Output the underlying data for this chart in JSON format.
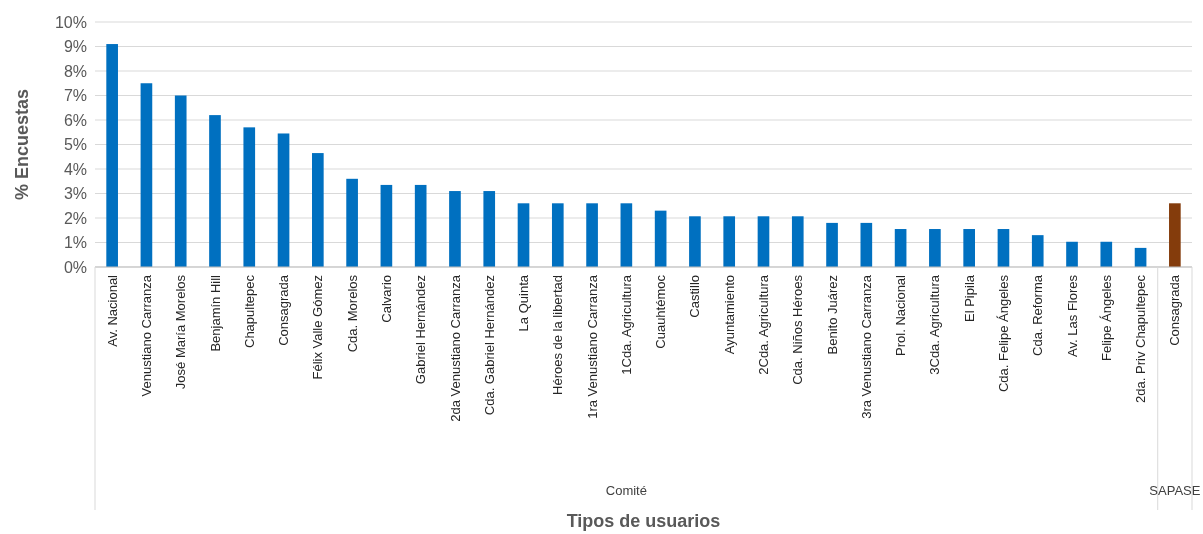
{
  "chart_data": {
    "type": "bar",
    "xlabel": "Tipos de usuarios",
    "ylabel": "% Encuestas",
    "categories": [
      "Av. Nacional",
      "Venustiano Carranza",
      "José María Morelos",
      "Benjamín Hill",
      "Chapultepec",
      "Consagrada",
      "Félix Valle Gómez",
      "Cda. Morelos",
      "Calvario",
      "Gabriel Hernández",
      "2da Venustiano Carranza",
      "Cda. Gabriel Hernández",
      "La Quinta",
      "Héroes de la libertad",
      "1ra Venustiano Carranza",
      "1Cda. Agricultura",
      "Cuauhtémoc",
      "Castillo",
      "Ayuntamiento",
      "2Cda. Agricultura",
      "Cda. Niños Héroes",
      "Benito Juárez",
      "3ra Venustiano Carranza",
      "Prol. Nacional",
      "3Cda. Agricultura",
      "El Pipila",
      "Cda. Felipe Ángeles",
      "Cda. Reforma",
      "Av. Las Flores",
      "Felipe Ángeles",
      "2da. Priv Chapultepec",
      "Consagrada"
    ],
    "values": [
      9.1,
      7.5,
      7.0,
      6.2,
      5.7,
      5.45,
      4.65,
      3.6,
      3.35,
      3.35,
      3.1,
      3.1,
      2.6,
      2.6,
      2.6,
      2.6,
      2.3,
      2.07,
      2.07,
      2.07,
      2.07,
      1.8,
      1.8,
      1.55,
      1.55,
      1.55,
      1.55,
      1.3,
      1.03,
      1.03,
      0.78,
      2.6
    ],
    "colors": [
      "#0070c0",
      "#0070c0",
      "#0070c0",
      "#0070c0",
      "#0070c0",
      "#0070c0",
      "#0070c0",
      "#0070c0",
      "#0070c0",
      "#0070c0",
      "#0070c0",
      "#0070c0",
      "#0070c0",
      "#0070c0",
      "#0070c0",
      "#0070c0",
      "#0070c0",
      "#0070c0",
      "#0070c0",
      "#0070c0",
      "#0070c0",
      "#0070c0",
      "#0070c0",
      "#0070c0",
      "#0070c0",
      "#0070c0",
      "#0070c0",
      "#0070c0",
      "#0070c0",
      "#0070c0",
      "#0070c0",
      "#843c0c"
    ],
    "annotations": [
      "Comité",
      "SAPASE"
    ],
    "ylim": [
      0,
      10
    ],
    "yticks": [
      {
        "value": 0,
        "label": "0%"
      },
      {
        "value": 1,
        "label": "1%"
      },
      {
        "value": 2,
        "label": "2%"
      },
      {
        "value": 3,
        "label": "3%"
      },
      {
        "value": 4,
        "label": "4%"
      },
      {
        "value": 5,
        "label": "5%"
      },
      {
        "value": 6,
        "label": "6%"
      },
      {
        "value": 7,
        "label": "7%"
      },
      {
        "value": 8,
        "label": "8%"
      },
      {
        "value": 9,
        "label": "9%"
      },
      {
        "value": 10,
        "label": "10%"
      }
    ],
    "grid": "y"
  }
}
